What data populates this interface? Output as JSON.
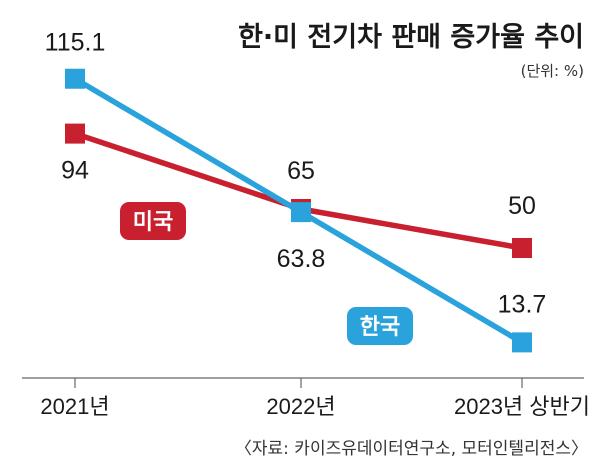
{
  "chart_data": {
    "type": "line",
    "title": "한·미 전기차 판매 증가율 추이",
    "unit": "(단위: %)",
    "categories": [
      "2021년",
      "2022년",
      "2023년 상반기"
    ],
    "series": [
      {
        "name": "미국",
        "values": [
          94,
          65,
          50
        ],
        "color": "#c8202f"
      },
      {
        "name": "한국",
        "values": [
          115.1,
          63.8,
          13.7
        ],
        "color": "#2aa3dc"
      }
    ],
    "value_labels": {
      "미국": [
        "94",
        "65",
        "50"
      ],
      "한국": [
        "115.1",
        "63.8",
        "13.7"
      ]
    },
    "ylim": [
      0,
      130
    ],
    "grid": false,
    "source": "〈자료: 카이즈유데이터연구소, 모터인텔리전스〉"
  }
}
